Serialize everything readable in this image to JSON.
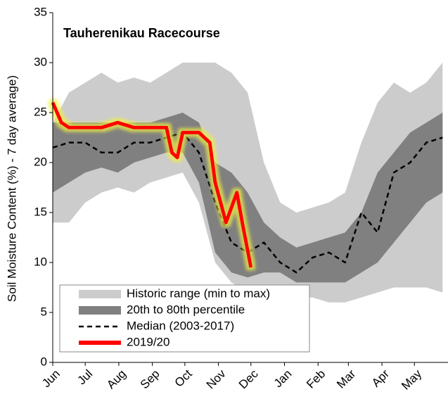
{
  "chart_data": {
    "type": "band-line",
    "title": "Tauherenikau Racecourse",
    "y_label": "Soil Moisture Content (%) - 7 day average)",
    "ylim": [
      0,
      35
    ],
    "yticks": [
      0,
      5,
      10,
      15,
      20,
      25,
      30,
      35
    ],
    "xlim": [
      0,
      365
    ],
    "xticks": [
      {
        "value": 0,
        "label": "Jun"
      },
      {
        "value": 30,
        "label": "Jul"
      },
      {
        "value": 61,
        "label": "Aug"
      },
      {
        "value": 92,
        "label": "Sep"
      },
      {
        "value": 122,
        "label": "Oct"
      },
      {
        "value": 153,
        "label": "Nov"
      },
      {
        "value": 183,
        "label": "Dec"
      },
      {
        "value": 214,
        "label": "Jan"
      },
      {
        "value": 245,
        "label": "Feb"
      },
      {
        "value": 273,
        "label": "Mar"
      },
      {
        "value": 304,
        "label": "Apr"
      },
      {
        "value": 334,
        "label": "May"
      }
    ],
    "x": [
      0,
      15,
      30,
      45,
      60,
      75,
      90,
      105,
      120,
      135,
      150,
      165,
      180,
      195,
      210,
      225,
      240,
      255,
      270,
      285,
      300,
      315,
      330,
      345,
      360
    ],
    "bands": [
      {
        "name": "Historic range (min to max)",
        "color": "#cccccc",
        "lower": [
          14,
          14,
          16,
          17,
          17.5,
          17,
          18,
          18.5,
          19,
          16,
          10,
          8,
          7,
          7.5,
          7,
          6.5,
          6.5,
          6,
          6,
          6.5,
          7,
          7.5,
          7.5,
          7.5,
          7
        ],
        "upper": [
          24,
          27,
          28,
          29,
          28,
          28.5,
          28,
          29,
          30,
          30,
          30,
          29,
          27,
          20,
          16,
          15,
          15.5,
          16,
          17,
          22,
          26,
          28,
          27,
          28,
          30
        ]
      },
      {
        "name": "20th to 80th percentile",
        "color": "#808080",
        "lower": [
          17,
          18,
          19,
          19.5,
          19,
          20,
          20.5,
          21,
          21,
          18,
          11,
          9,
          8.5,
          9,
          9,
          8,
          8,
          8,
          8,
          9,
          10,
          12,
          14,
          16,
          17
        ],
        "upper": [
          24,
          24,
          24,
          24,
          24,
          24,
          24,
          24.5,
          25,
          24,
          20,
          19,
          17,
          14,
          12.5,
          11.5,
          12,
          12.5,
          13,
          15,
          19,
          21,
          23,
          24,
          25
        ]
      }
    ],
    "series": [
      {
        "name": "Median (2003-2017)",
        "color": "#000000",
        "dashed": true,
        "values": [
          21.5,
          22,
          22,
          21,
          21,
          22,
          22,
          22.5,
          23,
          21,
          16,
          12,
          11,
          12,
          10,
          9,
          10.5,
          11,
          10,
          15,
          13,
          19,
          20,
          22,
          22.5
        ]
      },
      {
        "name": "2019/20",
        "color": "#ff0000",
        "glow": "#f0f040",
        "x": [
          0,
          8,
          15,
          30,
          45,
          60,
          75,
          90,
          105,
          110,
          115,
          120,
          135,
          145,
          150,
          160,
          170,
          175,
          183
        ],
        "values": [
          26,
          24,
          23.5,
          23.5,
          23.5,
          24,
          23.5,
          23.5,
          23.5,
          21,
          20.5,
          23,
          23,
          22,
          18,
          14,
          17,
          14,
          9.5
        ]
      }
    ]
  }
}
